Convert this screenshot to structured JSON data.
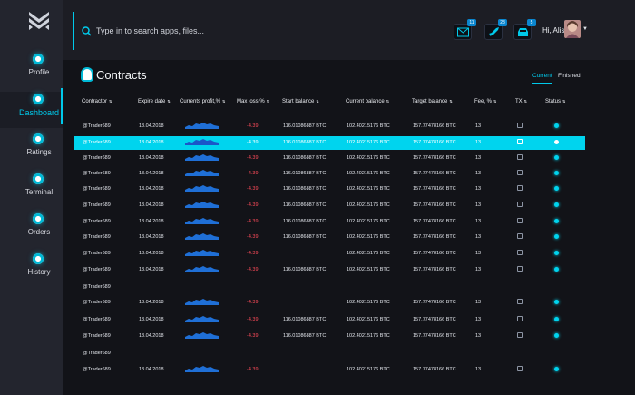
{
  "header": {
    "search_placeholder": "Type in to search apps, files...",
    "greeting": "Hi, Alisa",
    "icons": [
      {
        "name": "mail-icon",
        "badge": "11"
      },
      {
        "name": "rocket-icon",
        "badge": "28"
      },
      {
        "name": "inbox-icon",
        "badge": "5"
      }
    ]
  },
  "sidebar": {
    "items": [
      {
        "label": "Profile",
        "active": false
      },
      {
        "label": "Dashboard",
        "active": true
      },
      {
        "label": "Ratings",
        "active": false
      },
      {
        "label": "Terminal",
        "active": false
      },
      {
        "label": "Orders",
        "active": false
      },
      {
        "label": "History",
        "active": false
      }
    ]
  },
  "main": {
    "title": "Contracts",
    "tabs": [
      {
        "label": "Current",
        "active": true
      },
      {
        "label": "Finished",
        "active": false
      }
    ]
  },
  "table": {
    "columns": [
      "Contractor",
      "Expire date",
      "Currents profit,%",
      "Max loss,%",
      "Start balance",
      "Current balance",
      "Target balance",
      "Fee, %",
      "TX",
      "Status"
    ],
    "rows": [
      {
        "contractor": "@Trader689",
        "expire": "13.04.2018",
        "profit": true,
        "loss": "-4.39",
        "start": "116.01086887 BTC",
        "current": "102.40215176 BTC",
        "target": "157.77478166 BTC",
        "fee": "13",
        "tx": true,
        "status": true,
        "active": false
      },
      {
        "contractor": "@Trader689",
        "expire": "13.04.2018",
        "profit": true,
        "loss": "-4.39",
        "start": "116.01086887 BTC",
        "current": "102.40215176 BTC",
        "target": "157.77478166 BTC",
        "fee": "13",
        "tx": true,
        "status": true,
        "active": true
      },
      {
        "contractor": "@Trader689",
        "expire": "13.04.2018",
        "profit": true,
        "loss": "-4.39",
        "start": "116.01086887 BTC",
        "current": "102.40215176 BTC",
        "target": "157.77478166 BTC",
        "fee": "13",
        "tx": true,
        "status": true,
        "active": false
      },
      {
        "contractor": "@Trader689",
        "expire": "13.04.2018",
        "profit": true,
        "loss": "-4.39",
        "start": "116.01086887 BTC",
        "current": "102.40215176 BTC",
        "target": "157.77478166 BTC",
        "fee": "13",
        "tx": true,
        "status": true,
        "active": false
      },
      {
        "contractor": "@Trader689",
        "expire": "13.04.2018",
        "profit": true,
        "loss": "-4.39",
        "start": "116.01086887 BTC",
        "current": "102.40215176 BTC",
        "target": "157.77478166 BTC",
        "fee": "13",
        "tx": true,
        "status": true,
        "active": false
      },
      {
        "contractor": "@Trader689",
        "expire": "13.04.2018",
        "profit": true,
        "loss": "-4.39",
        "start": "116.01086887 BTC",
        "current": "102.40215176 BTC",
        "target": "157.77478166 BTC",
        "fee": "13",
        "tx": true,
        "status": true,
        "active": false
      },
      {
        "contractor": "@Trader689",
        "expire": "13.04.2018",
        "profit": true,
        "loss": "-4.39",
        "start": "116.01086887 BTC",
        "current": "102.40215176 BTC",
        "target": "157.77478166 BTC",
        "fee": "13",
        "tx": true,
        "status": true,
        "active": false
      },
      {
        "contractor": "@Trader689",
        "expire": "13.04.2018",
        "profit": true,
        "loss": "-4.39",
        "start": "116.01086887 BTC",
        "current": "102.40215176 BTC",
        "target": "157.77478166 BTC",
        "fee": "13",
        "tx": true,
        "status": true,
        "active": false
      },
      {
        "contractor": "@Trader689",
        "expire": "13.04.2018",
        "profit": true,
        "loss": "-4.39",
        "start": "",
        "current": "102.40215176 BTC",
        "target": "157.77478166 BTC",
        "fee": "13",
        "tx": true,
        "status": true,
        "active": false
      },
      {
        "contractor": "@Trader689",
        "expire": "13.04.2018",
        "profit": true,
        "loss": "-4.39",
        "start": "116.01086887 BTC",
        "current": "102.40215176 BTC",
        "target": "157.77478166 BTC",
        "fee": "13",
        "tx": true,
        "status": true,
        "active": false
      },
      {
        "contractor": "@Trader689",
        "expire": "",
        "profit": false,
        "loss": "",
        "start": "",
        "current": "",
        "target": "",
        "fee": "",
        "tx": false,
        "status": false,
        "active": false
      },
      {
        "contractor": "@Trader689",
        "expire": "13.04.2018",
        "profit": true,
        "loss": "-4.39",
        "start": "",
        "current": "102.40215176 BTC",
        "target": "157.77478166 BTC",
        "fee": "13",
        "tx": true,
        "status": true,
        "active": false
      },
      {
        "contractor": "@Trader689",
        "expire": "13.04.2018",
        "profit": true,
        "loss": "-4.39",
        "start": "116.01086887 BTC",
        "current": "102.40215176 BTC",
        "target": "157.77478166 BTC",
        "fee": "13",
        "tx": true,
        "status": true,
        "active": false
      },
      {
        "contractor": "@Trader689",
        "expire": "13.04.2018",
        "profit": true,
        "loss": "-4.39",
        "start": "116.01086887 BTC",
        "current": "102.40215176 BTC",
        "target": "157.77478166 BTC",
        "fee": "13",
        "tx": true,
        "status": true,
        "active": false
      },
      {
        "contractor": "@Trader689",
        "expire": "",
        "profit": false,
        "loss": "",
        "start": "",
        "current": "",
        "target": "",
        "fee": "",
        "tx": false,
        "status": false,
        "active": false
      },
      {
        "contractor": "@Trader689",
        "expire": "13.04.2018",
        "profit": true,
        "loss": "-4.39",
        "start": "",
        "current": "102.40215176 BTC",
        "target": "157.77478166 BTC",
        "fee": "13",
        "tx": true,
        "status": true,
        "active": false
      }
    ]
  },
  "colors": {
    "accent": "#00c9ea",
    "active_row": "#00d4ee",
    "negative": "#ff4b5a",
    "sparkline": "#1f6fd6"
  }
}
